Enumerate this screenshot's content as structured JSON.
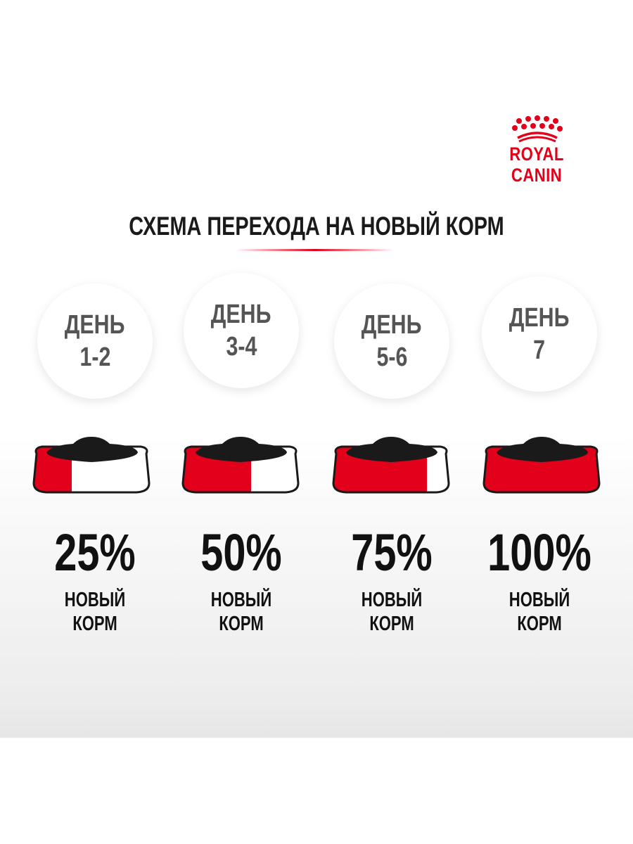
{
  "brand": {
    "logo_text": "ROYAL CANIN",
    "color": "#e2001a"
  },
  "title": "СХЕМА ПЕРЕХОДА НА НОВЫЙ КОРМ",
  "steps": [
    {
      "day_label": "ДЕНЬ",
      "days": "1-2",
      "percent": "25%",
      "fraction": 0.25,
      "caption": "НОВЫЙ КОРМ"
    },
    {
      "day_label": "ДЕНЬ",
      "days": "3-4",
      "percent": "50%",
      "fraction": 0.5,
      "caption": "НОВЫЙ КОРМ"
    },
    {
      "day_label": "ДЕНЬ",
      "days": "5-6",
      "percent": "75%",
      "fraction": 0.75,
      "caption": "НОВЫЙ КОРМ"
    },
    {
      "day_label": "ДЕНЬ",
      "days": "7",
      "percent": "100%",
      "fraction": 1.0,
      "caption": "НОВЫЙ КОРМ"
    }
  ]
}
